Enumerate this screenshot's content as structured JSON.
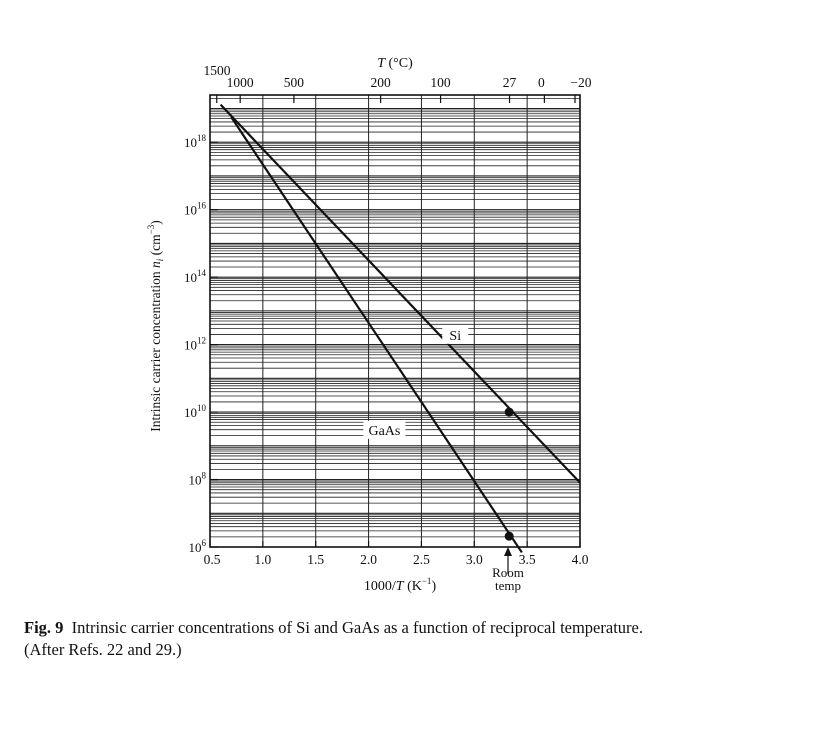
{
  "chart_data": {
    "type": "line",
    "x_axis": {
      "label_pre": "1000/",
      "label_var": "T",
      "label_post": " (K",
      "label_exp": "−1",
      "label_close": ")",
      "ticks": [
        "0.5",
        "1.0",
        "1.5",
        "2.0",
        "2.5",
        "3.0",
        "3.5",
        "4.0"
      ],
      "tick_values": [
        0.5,
        1.0,
        1.5,
        2.0,
        2.5,
        3.0,
        3.5,
        4.0
      ],
      "range": [
        0.5,
        4.0
      ]
    },
    "top_axis": {
      "label_var": "T",
      "label_unit": " (°C)",
      "ticks": [
        "1500",
        "1000",
        "500",
        "200",
        "100",
        "27",
        "0",
        "−20"
      ],
      "tick_celsius": [
        1500,
        1000,
        500,
        200,
        100,
        27,
        0,
        -20
      ]
    },
    "y_axis": {
      "label": "Intrinsic carrier concentration ",
      "label_var": "n",
      "label_sub": "i",
      "label_unit": " (cm",
      "label_exp": "−3",
      "label_close": ")",
      "tick_base": "10",
      "tick_exponents": [
        "6",
        "8",
        "10",
        "12",
        "14",
        "16",
        "18"
      ],
      "log10_range": [
        6,
        19.4
      ],
      "scale": "log"
    },
    "grid": true,
    "series": [
      {
        "name": "Si",
        "x": [
          0.6,
          4.0
        ],
        "y": [
          1.3e+19,
          81000000.0
        ],
        "color": "#111111"
      },
      {
        "name": "GaAs",
        "x": [
          0.7,
          3.45
        ],
        "y": [
          5.6e+18,
          690000.0
        ],
        "color": "#111111"
      }
    ],
    "markers": [
      {
        "series": "Si",
        "x": 3.33,
        "y": 10000000000.0
      },
      {
        "series": "GaAs",
        "x": 3.33,
        "y": 2100000.0
      }
    ],
    "annotations": {
      "room_temp_line1": "Room",
      "room_temp_line2": "temp",
      "room_temp_x": 3.33
    }
  },
  "caption": {
    "fig_label": "Fig. 9",
    "line1": "Intrinsic carrier concentrations of Si and GaAs as a function of reciprocal temperature.",
    "line2": "(After Refs. 22 and 29.)"
  }
}
